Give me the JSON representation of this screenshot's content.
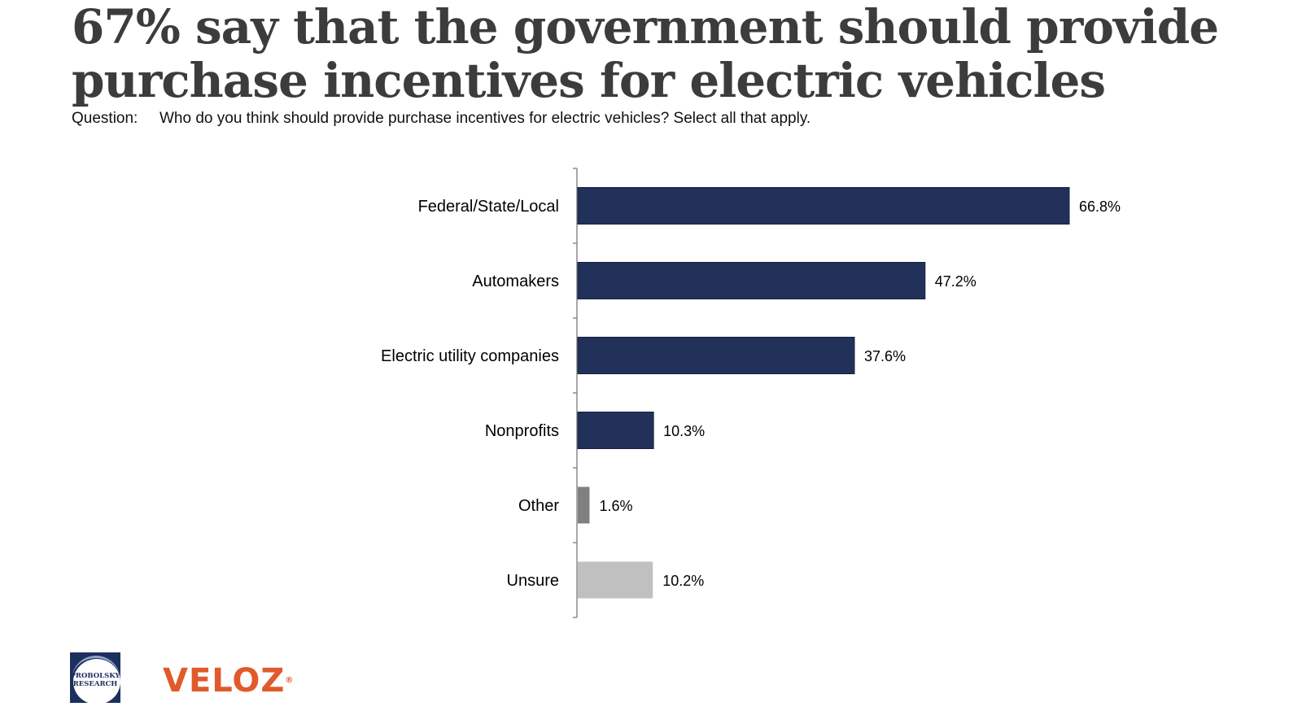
{
  "header": {
    "title": "67% say that the government should provide purchase incentives for electric vehicles",
    "question_label": "Question:",
    "question_text": "Who do you think should provide purchase incentives for electric vehicles? Select all that apply."
  },
  "chart_data": {
    "type": "bar",
    "orientation": "horizontal",
    "categories": [
      "Federal/State/Local",
      "Automakers",
      "Electric utility companies",
      "Nonprofits",
      "Other",
      "Unsure"
    ],
    "values": [
      66.8,
      47.2,
      37.6,
      10.3,
      1.6,
      10.2
    ],
    "value_labels": [
      "66.8%",
      "47.2%",
      "37.6%",
      "10.3%",
      "1.6%",
      "10.2%"
    ],
    "colors": [
      "#22315a",
      "#22315a",
      "#22315a",
      "#22315a",
      "#808080",
      "#c0c0c0"
    ],
    "xlim": [
      0,
      100
    ],
    "grid": false,
    "legend": "none"
  },
  "footer": {
    "logos": {
      "probolsky": "PROBOLSKY RESEARCH",
      "veloz": "VELOZ",
      "veloz_mark": "®"
    }
  }
}
